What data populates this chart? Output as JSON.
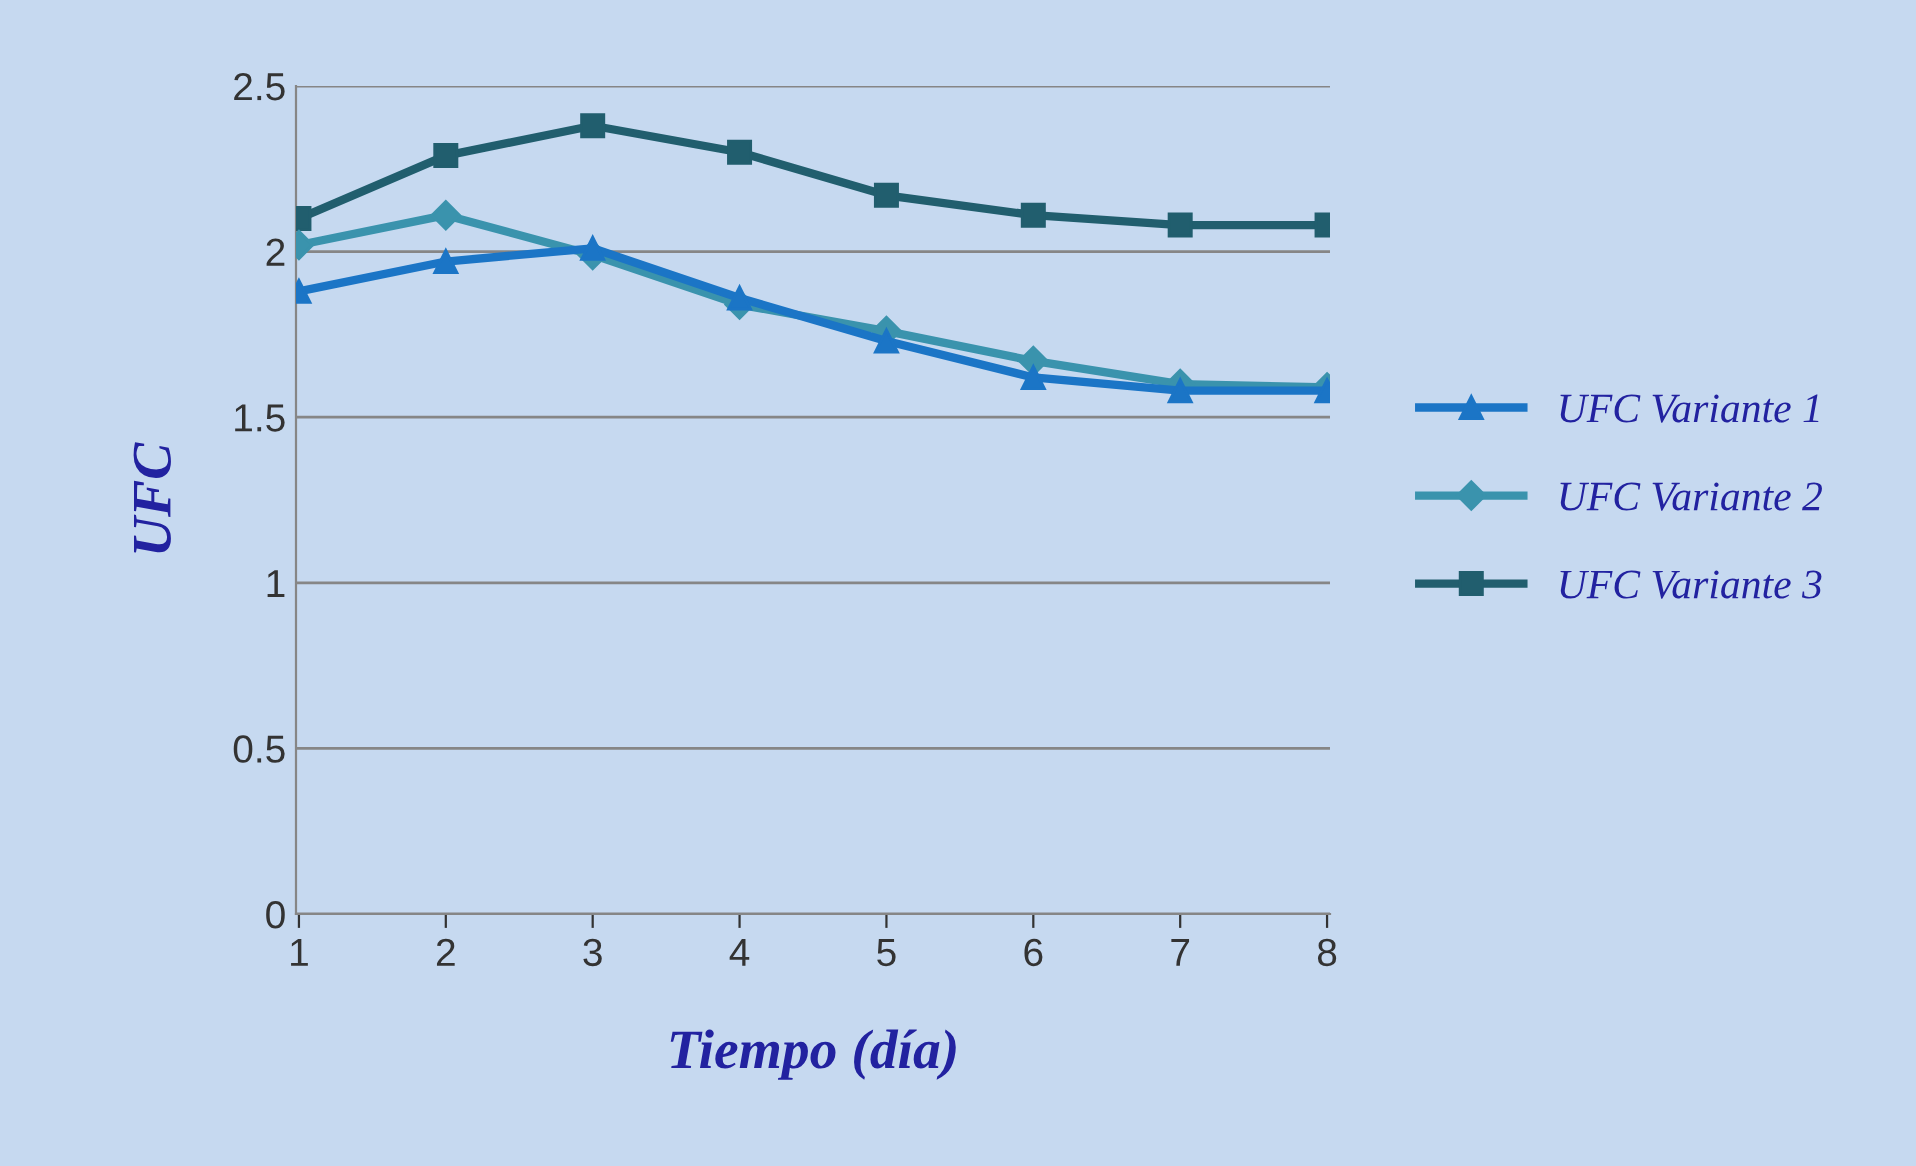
{
  "chart_data": {
    "type": "line",
    "xlabel": "Tiempo (día)",
    "ylabel": "UFC",
    "categories": [
      "1",
      "2",
      "3",
      "4",
      "5",
      "6",
      "7",
      "8"
    ],
    "series": [
      {
        "name": "UFC Variante 1",
        "color": "#1b75c6",
        "marker": "triangle",
        "values": [
          1.88,
          1.97,
          2.01,
          1.86,
          1.73,
          1.62,
          1.58,
          1.58
        ]
      },
      {
        "name": "UFC Variante 2",
        "color": "#3a93ad",
        "marker": "diamond",
        "values": [
          2.02,
          2.11,
          1.99,
          1.84,
          1.76,
          1.67,
          1.6,
          1.59
        ]
      },
      {
        "name": "UFC Variante 3",
        "color": "#215e6e",
        "marker": "square",
        "values": [
          2.1,
          2.29,
          2.38,
          2.3,
          2.17,
          2.11,
          2.08,
          2.08
        ]
      }
    ],
    "ylim": [
      0,
      2.5
    ],
    "yticks": [
      0,
      0.5,
      1,
      1.5,
      2,
      2.5
    ],
    "grid": "y",
    "legend": "right",
    "line_style": "solid"
  }
}
